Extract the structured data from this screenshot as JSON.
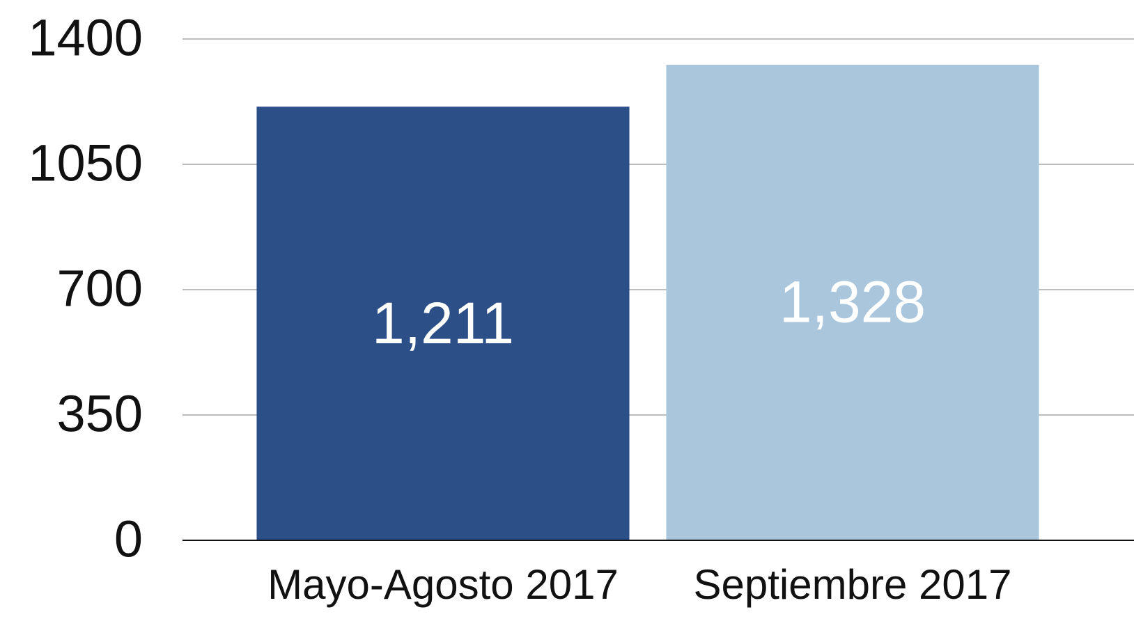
{
  "chart_data": {
    "type": "bar",
    "categories": [
      "Mayo-Agosto 2017",
      "Septiembre 2017"
    ],
    "values": [
      1211,
      1328
    ],
    "value_labels": [
      "1,211",
      "1,328"
    ],
    "colors": [
      "#2b4f86",
      "#a9c6dd"
    ],
    "ylim": [
      0,
      1400
    ],
    "yticks": [
      0,
      350,
      700,
      1050,
      1400
    ],
    "grid": true
  }
}
